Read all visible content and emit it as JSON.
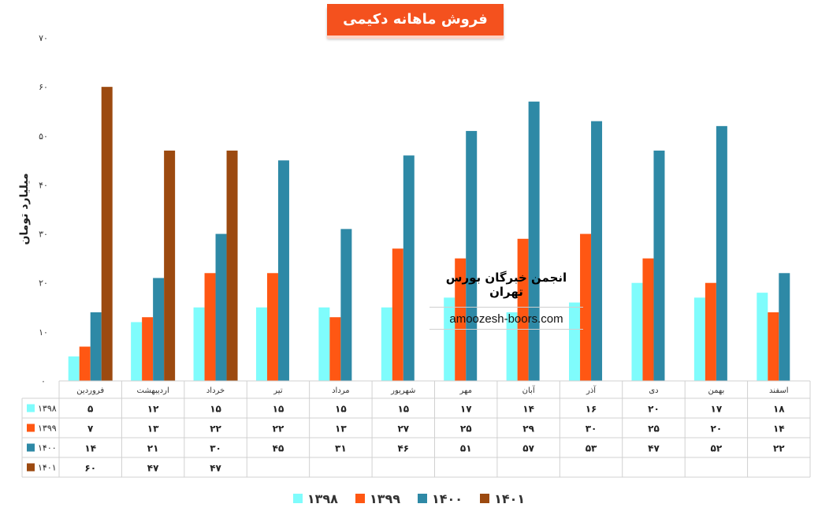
{
  "title": "فروش ماهانه دکیمی",
  "watermark": {
    "name": "انجمن خبرگان بورس تهران",
    "url": "amoozesh-boors.com"
  },
  "chart_data": {
    "type": "bar",
    "ylabel": "میلیارد تومان",
    "ylim": [
      0,
      70
    ],
    "y_ticks": [
      "0",
      "10",
      "20",
      "30",
      "40",
      "50",
      "60",
      "70"
    ],
    "categories": [
      "فروردین",
      "اردیبهشت",
      "خرداد",
      "تیر",
      "مرداد",
      "شهریور",
      "مهر",
      "آبان",
      "آذر",
      "دی",
      "بهمن",
      "اسفند"
    ],
    "series": [
      {
        "name": "1398",
        "color": "#7ffcfc",
        "values": [
          5,
          12,
          15,
          15,
          15,
          15,
          17,
          14,
          16,
          20,
          17,
          18
        ],
        "display": [
          "۵",
          "۱۲",
          "۱۵",
          "۱۵",
          "۱۵",
          "۱۵",
          "۱۷",
          "۱۴",
          "۱۶",
          "۲۰",
          "۱۷",
          "۱۸"
        ]
      },
      {
        "name": "1399",
        "color": "#ff5713",
        "values": [
          7,
          13,
          22,
          22,
          13,
          27,
          25,
          29,
          30,
          25,
          20,
          14
        ],
        "display": [
          "۷",
          "۱۳",
          "۲۲",
          "۲۲",
          "۱۳",
          "۲۷",
          "۲۵",
          "۲۹",
          "۳۰",
          "۲۵",
          "۲۰",
          "۱۴"
        ]
      },
      {
        "name": "1400",
        "color": "#2e89a6",
        "values": [
          14,
          21,
          30,
          45,
          31,
          46,
          51,
          57,
          53,
          47,
          52,
          22
        ],
        "display": [
          "۱۴",
          "۲۱",
          "۳۰",
          "۴۵",
          "۳۱",
          "۴۶",
          "۵۱",
          "۵۷",
          "۵۳",
          "۴۷",
          "۵۲",
          "۲۲"
        ]
      },
      {
        "name": "1401",
        "color": "#9c4a10",
        "values": [
          60,
          47,
          47,
          null,
          null,
          null,
          null,
          null,
          null,
          null,
          null,
          null
        ],
        "display": [
          "۶۰",
          "۴۷",
          "۴۷",
          "",
          "",
          "",
          "",
          "",
          "",
          "",
          "",
          ""
        ]
      }
    ],
    "series_labels": [
      "۱۳۹۸",
      "۱۳۹۹",
      "۱۴۰۰",
      "۱۴۰۱"
    ],
    "legend_position": "bottom",
    "grid": false
  }
}
